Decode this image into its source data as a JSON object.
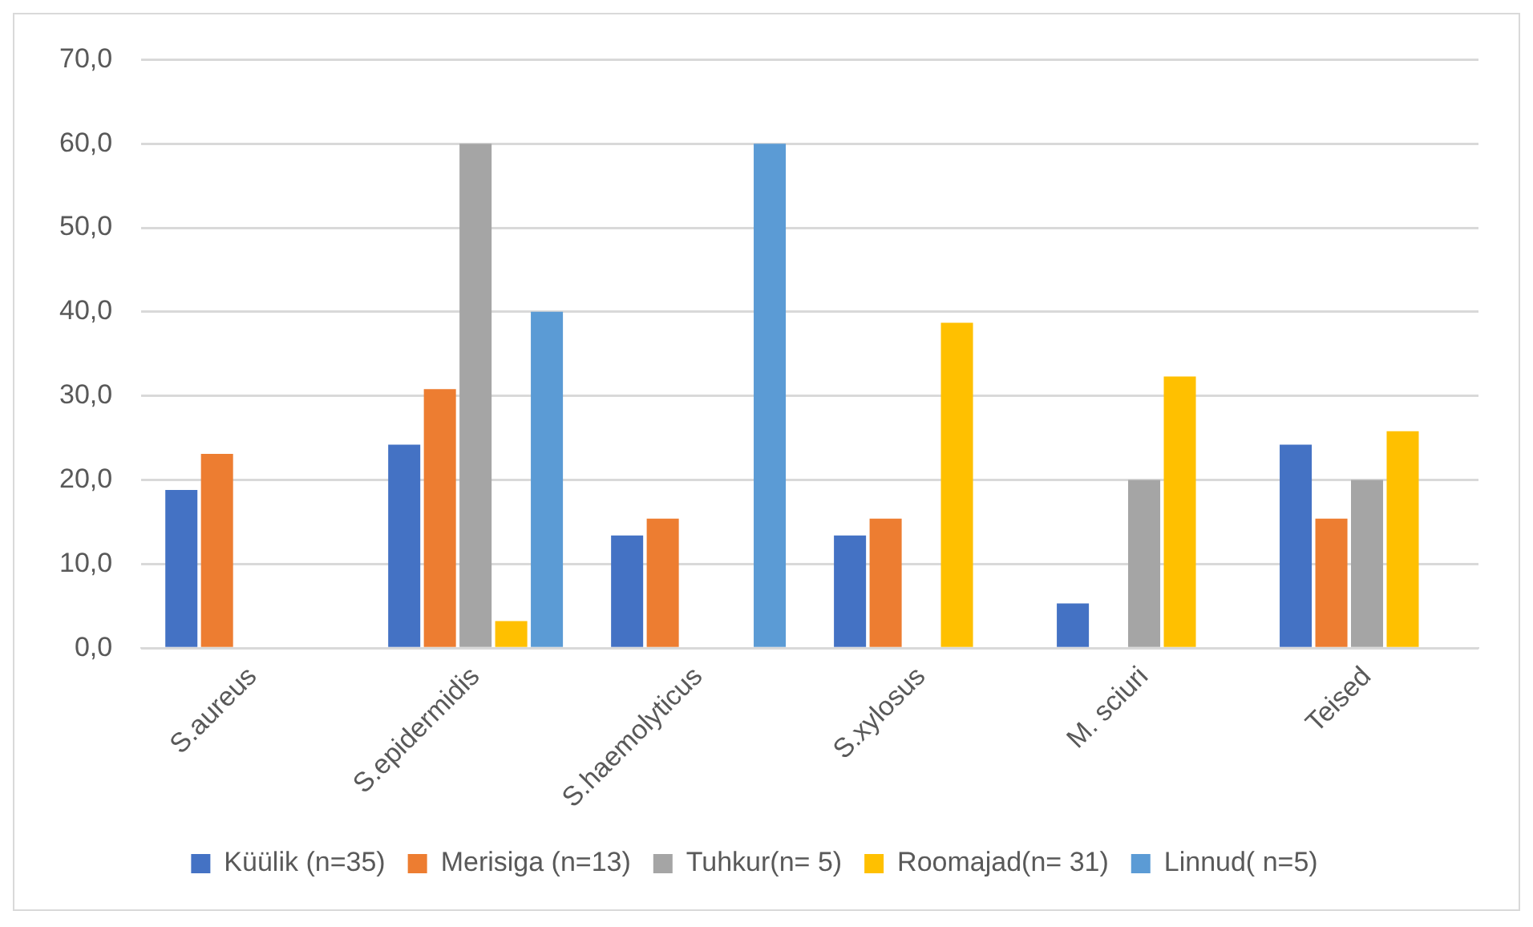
{
  "chart_data": {
    "type": "bar",
    "categories": [
      "S.aureus",
      "S.epidermidis",
      "S.haemolyticus",
      "S.xylosus",
      "M. sciuri",
      "Teised"
    ],
    "series": [
      {
        "name": "Küülik (n=35)",
        "color": "#4472c4",
        "values": [
          18.8,
          24.2,
          13.4,
          13.4,
          5.3,
          24.2
        ]
      },
      {
        "name": "Merisiga (n=13)",
        "color": "#ed7d31",
        "values": [
          23.1,
          30.8,
          15.4,
          15.4,
          null,
          15.4
        ]
      },
      {
        "name": "Tuhkur(n= 5)",
        "color": "#a5a5a5",
        "values": [
          null,
          60,
          null,
          null,
          20,
          20
        ]
      },
      {
        "name": "Roomajad(n= 31)",
        "color": "#ffc000",
        "values": [
          null,
          3.2,
          null,
          38.7,
          32.3,
          25.8
        ]
      },
      {
        "name": "Linnud( n=5)",
        "color": "#5b9bd5",
        "values": [
          null,
          40,
          60,
          null,
          null,
          null
        ]
      }
    ],
    "ylim": [
      0,
      70
    ],
    "yticks": [
      {
        "value": 0,
        "label": "0,0"
      },
      {
        "value": 10,
        "label": "10,0"
      },
      {
        "value": 20,
        "label": "20,0"
      },
      {
        "value": 30,
        "label": "30,0"
      },
      {
        "value": 40,
        "label": "40,0"
      },
      {
        "value": 50,
        "label": "50,0"
      },
      {
        "value": 60,
        "label": "60,0"
      },
      {
        "value": 70,
        "label": "70,0"
      }
    ],
    "grid": "y",
    "legend": "bottom"
  }
}
